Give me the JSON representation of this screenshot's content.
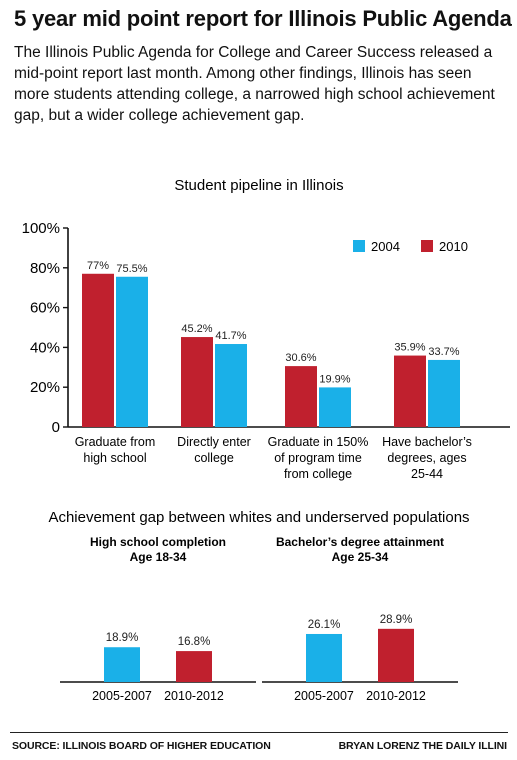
{
  "header": {
    "title": "5 year mid point report for Illinois Public Agenda",
    "intro": "The Illinois Public Agenda for College and Career Success released a mid-point report last month. Among other findings, Illinois has seen more students attending college, a narrowed high school achievement gap, but a wider college achievement gap."
  },
  "colors": {
    "c2004": "#1ab0e8",
    "c2010": "#c0202e",
    "axis": "#111111"
  },
  "chart_data": [
    {
      "type": "bar",
      "title": "Student pipeline in Illinois",
      "categories": [
        [
          "Graduate from",
          "high school"
        ],
        [
          "Directly enter",
          "college"
        ],
        [
          "Graduate in 150%",
          "of program time",
          "from college"
        ],
        [
          "Have bachelor’s",
          "degrees, ages",
          "25-44"
        ]
      ],
      "series": [
        {
          "name": "2010",
          "color": "#c0202e",
          "values": [
            77,
            45.2,
            30.6,
            35.9
          ],
          "labels": [
            "77%",
            "45.2%",
            "30.6%",
            "35.9%"
          ]
        },
        {
          "name": "2004",
          "color": "#1ab0e8",
          "values": [
            75.5,
            41.7,
            19.9,
            33.7
          ],
          "labels": [
            "75.5%",
            "41.7%",
            "19.9%",
            "33.7%"
          ]
        }
      ],
      "yticks": [
        "0",
        "20%",
        "40%",
        "60%",
        "80%",
        "100%"
      ],
      "ylim": [
        0,
        100
      ],
      "legend_order": [
        "2004",
        "2010"
      ],
      "legend_position": "top-right",
      "grid": false
    },
    {
      "type": "bar",
      "group_title": "Achievement gap between whites and underserved populations",
      "subtitle": [
        "High school completion",
        "Age 18-34"
      ],
      "categories": [
        "2005-2007",
        "2010-2012"
      ],
      "values": [
        18.9,
        16.8
      ],
      "labels": [
        "18.9%",
        "16.8%"
      ],
      "colors": [
        "#1ab0e8",
        "#c0202e"
      ]
    },
    {
      "type": "bar",
      "subtitle": [
        "Bachelor’s degree attainment",
        "Age 25-34"
      ],
      "categories": [
        "2005-2007",
        "2010-2012"
      ],
      "values": [
        26.1,
        28.9
      ],
      "labels": [
        "26.1%",
        "28.9%"
      ],
      "colors": [
        "#1ab0e8",
        "#c0202e"
      ]
    }
  ],
  "footer": {
    "source": "SOURCE: ILLINOIS BOARD OF HIGHER EDUCATION",
    "credit": "BRYAN LORENZ THE DAILY ILLINI"
  }
}
